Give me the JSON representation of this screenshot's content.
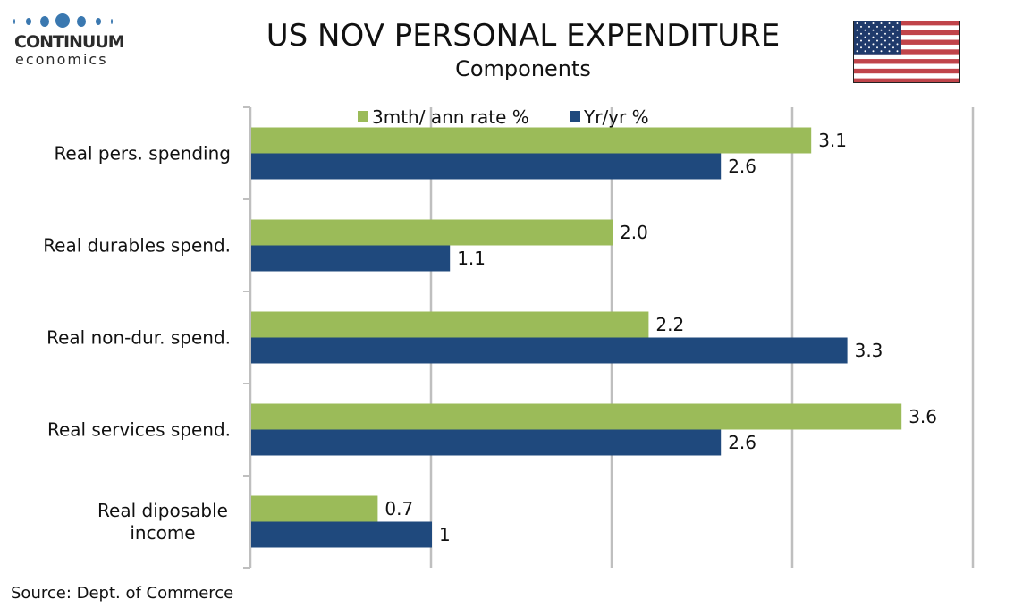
{
  "header": {
    "title": "US NOV PERSONAL EXPENDITURE",
    "subtitle": "Components",
    "logo_name": "CONTINUUM",
    "logo_sub": "economics",
    "flag_icon": "us-flag-icon"
  },
  "footer": {
    "source": "Source: Dept. of Commerce"
  },
  "colors": {
    "series1": "#9BBB59",
    "series2": "#1F497D",
    "grid": "#BFBFBF",
    "logo_blue": "#3A78B0"
  },
  "chart_data": {
    "type": "bar",
    "orientation": "horizontal",
    "title": "US NOV PERSONAL EXPENDITURE",
    "subtitle": "Components",
    "categories": [
      "Real pers. spending",
      "Real durables spend.",
      "Real non-dur. spend.",
      "Real services spend.",
      "Real diposable income"
    ],
    "category_lines": [
      [
        "Real pers. spending"
      ],
      [
        "Real durables spend."
      ],
      [
        "Real non-dur. spend."
      ],
      [
        "Real services spend."
      ],
      [
        "Real diposable",
        "income"
      ]
    ],
    "series": [
      {
        "name": "3mth/ ann rate %",
        "values": [
          3.1,
          2.0,
          2.2,
          3.6,
          0.7
        ],
        "labels": [
          "3.1",
          "2.0",
          "2.2",
          "3.6",
          "0.7"
        ]
      },
      {
        "name": "Yr/yr %",
        "values": [
          2.6,
          1.1,
          3.3,
          2.6,
          1.0
        ],
        "labels": [
          "2.6",
          "1.1",
          "3.3",
          "2.6",
          "1"
        ]
      }
    ],
    "xlim": [
      0,
      4
    ],
    "gridlines": [
      0,
      1,
      2,
      3,
      4
    ],
    "grid": true,
    "x_tick_labels_visible": false,
    "legend_position": "top"
  }
}
